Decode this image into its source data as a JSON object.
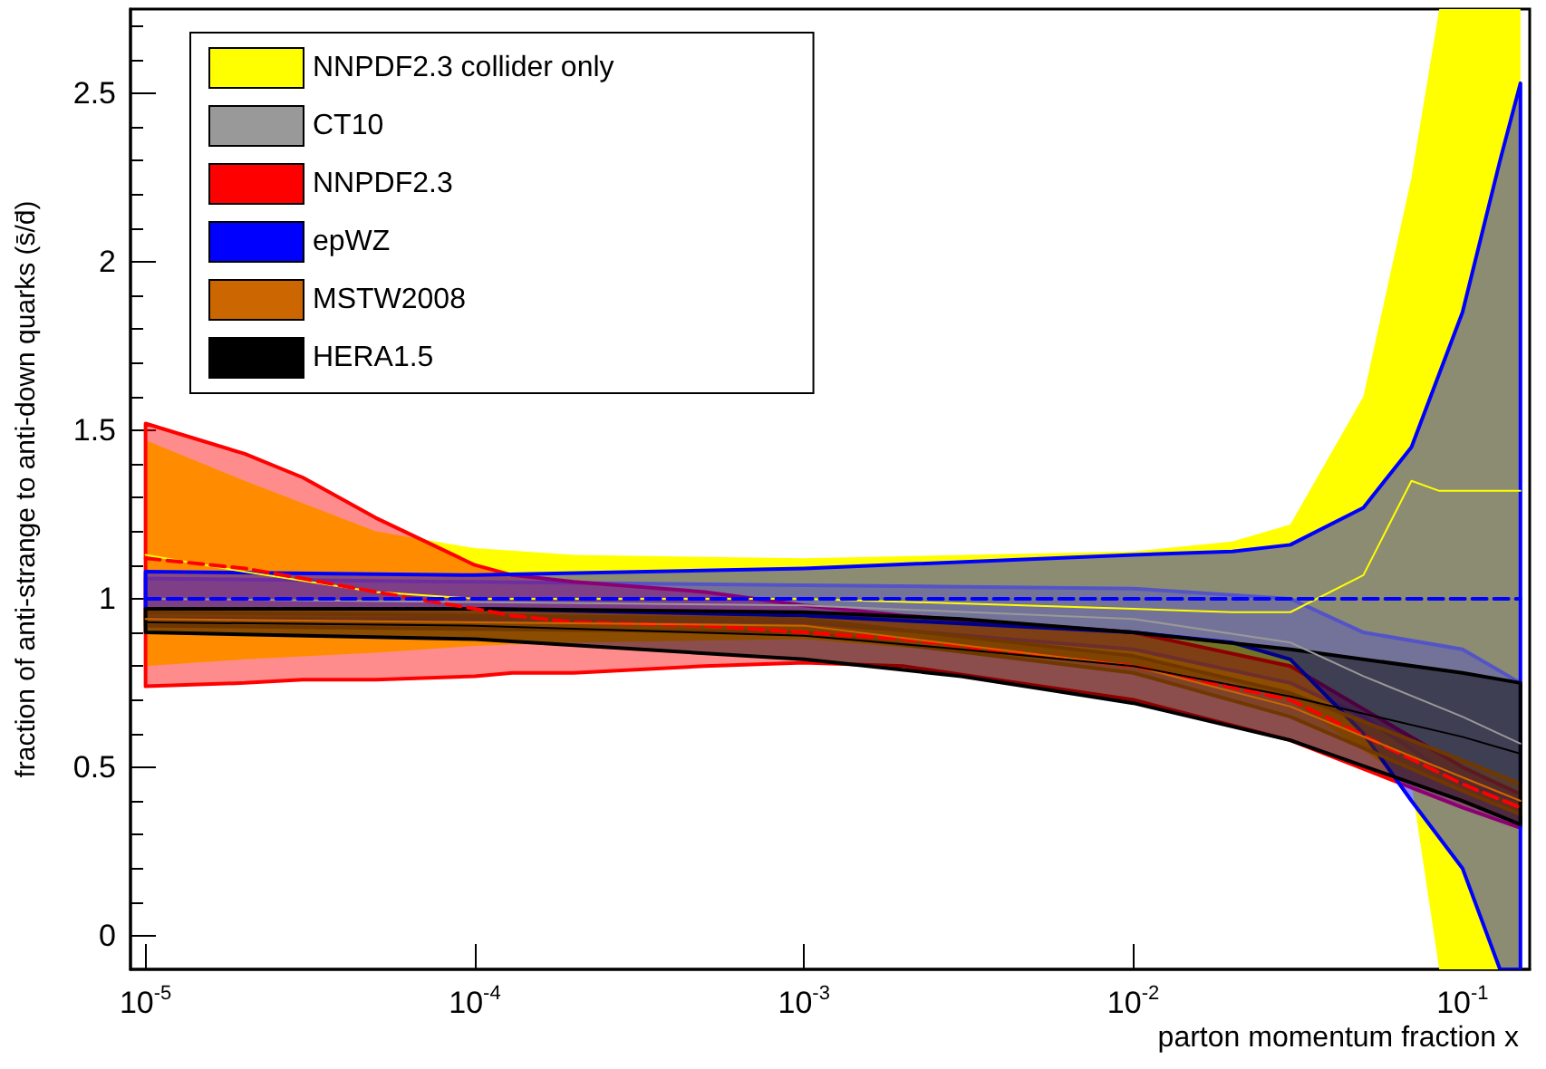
{
  "chart_data": {
    "type": "line",
    "xlabel": "parton momentum fraction x",
    "ylabel": "fraction of anti-strange to anti-down quarks (s̄/d̄)",
    "log": "x",
    "xlim": [
      9e-06,
      0.16
    ],
    "ylim": [
      -0.1,
      2.75
    ],
    "xticks": [
      {
        "value": 1e-05,
        "label": "10$^{-5}$"
      },
      {
        "value": 0.0001,
        "label": "10$^{-4}$"
      },
      {
        "value": 0.001,
        "label": "10$^{-3}$"
      },
      {
        "value": 0.01,
        "label": "10$^{-2}$"
      },
      {
        "value": 0.1,
        "label": "10$^{-1}$"
      }
    ],
    "yticks": [
      0,
      0.5,
      1,
      1.5,
      2,
      2.5
    ],
    "legend": "top left",
    "series": [
      {
        "name": "NNPDF2.3 collider only",
        "color": "#ffff00",
        "x": [
          1e-05,
          2e-05,
          5e-05,
          0.0001,
          0.0002,
          0.001,
          0.01,
          0.02,
          0.03,
          0.05,
          0.07,
          0.085,
          0.15
        ],
        "lower": [
          0.8,
          0.82,
          0.84,
          0.86,
          0.87,
          0.88,
          0.8,
          0.75,
          0.7,
          0.55,
          0.45,
          -0.1,
          -0.1
        ],
        "upper": [
          1.47,
          1.35,
          1.2,
          1.15,
          1.13,
          1.12,
          1.14,
          1.17,
          1.22,
          1.6,
          2.25,
          2.75,
          2.75
        ],
        "values": [
          1.13,
          1.08,
          1.02,
          1.0,
          1.0,
          1.0,
          0.97,
          0.96,
          0.96,
          1.07,
          1.35,
          1.32,
          1.32
        ]
      },
      {
        "name": "CT10",
        "color": "#999999",
        "x": [
          1e-05,
          0.0001,
          0.001,
          0.01,
          0.03,
          0.05,
          0.1,
          0.15
        ],
        "lower": [
          0.94,
          0.94,
          0.93,
          0.85,
          0.75,
          0.65,
          0.45,
          0.4
        ],
        "upper": [
          1.06,
          1.05,
          1.04,
          1.03,
          1.0,
          0.9,
          0.85,
          0.75
        ],
        "values": [
          1.0,
          0.99,
          0.98,
          0.94,
          0.87,
          0.77,
          0.65,
          0.57
        ]
      },
      {
        "name": "NNPDF2.3",
        "color": "#ff0000",
        "line_style": "dashed",
        "x": [
          1e-05,
          2e-05,
          3e-05,
          5e-05,
          0.0001,
          0.00013,
          0.0002,
          0.0005,
          0.001,
          0.002,
          0.01,
          0.03,
          0.1,
          0.15
        ],
        "lower": [
          0.74,
          0.75,
          0.76,
          0.76,
          0.77,
          0.78,
          0.78,
          0.8,
          0.81,
          0.8,
          0.7,
          0.58,
          0.38,
          0.32
        ],
        "upper": [
          1.52,
          1.43,
          1.36,
          1.24,
          1.1,
          1.07,
          1.05,
          1.02,
          0.98,
          0.95,
          0.9,
          0.8,
          0.5,
          0.42
        ],
        "values": [
          1.12,
          1.09,
          1.06,
          1.02,
          0.97,
          0.95,
          0.93,
          0.92,
          0.9,
          0.88,
          0.8,
          0.7,
          0.45,
          0.38
        ]
      },
      {
        "name": "epWZ",
        "color": "#0000ff",
        "line_style": "dashed",
        "x": [
          1e-05,
          0.0001,
          0.001,
          0.01,
          0.02,
          0.03,
          0.05,
          0.07,
          0.1,
          0.13,
          0.15
        ],
        "lower": [
          0.97,
          0.97,
          0.95,
          0.9,
          0.87,
          0.82,
          0.6,
          0.4,
          0.2,
          -0.1,
          -0.1
        ],
        "upper": [
          1.08,
          1.07,
          1.09,
          1.13,
          1.14,
          1.16,
          1.27,
          1.45,
          1.85,
          2.3,
          2.53
        ],
        "values": [
          1.0,
          1.0,
          1.0,
          1.0,
          1.0,
          1.0,
          1.0,
          1.0,
          1.0,
          1.0,
          1.0
        ]
      },
      {
        "name": "MSTW2008",
        "color": "#cc6600",
        "x": [
          1e-05,
          0.0001,
          0.001,
          0.01,
          0.03,
          0.1,
          0.15
        ],
        "lower": [
          0.92,
          0.91,
          0.9,
          0.78,
          0.65,
          0.43,
          0.36
        ],
        "upper": [
          0.96,
          0.95,
          0.94,
          0.83,
          0.72,
          0.52,
          0.45
        ],
        "values": [
          0.94,
          0.93,
          0.92,
          0.8,
          0.68,
          0.47,
          0.4
        ]
      },
      {
        "name": "HERA1.5",
        "color": "#000000",
        "x": [
          1e-05,
          0.0001,
          0.001,
          0.003,
          0.01,
          0.03,
          0.1,
          0.15
        ],
        "lower": [
          0.9,
          0.88,
          0.82,
          0.77,
          0.69,
          0.58,
          0.4,
          0.33
        ],
        "upper": [
          0.97,
          0.97,
          0.96,
          0.94,
          0.9,
          0.85,
          0.78,
          0.75
        ],
        "values": [
          0.93,
          0.92,
          0.89,
          0.85,
          0.8,
          0.71,
          0.59,
          0.54
        ]
      }
    ]
  }
}
